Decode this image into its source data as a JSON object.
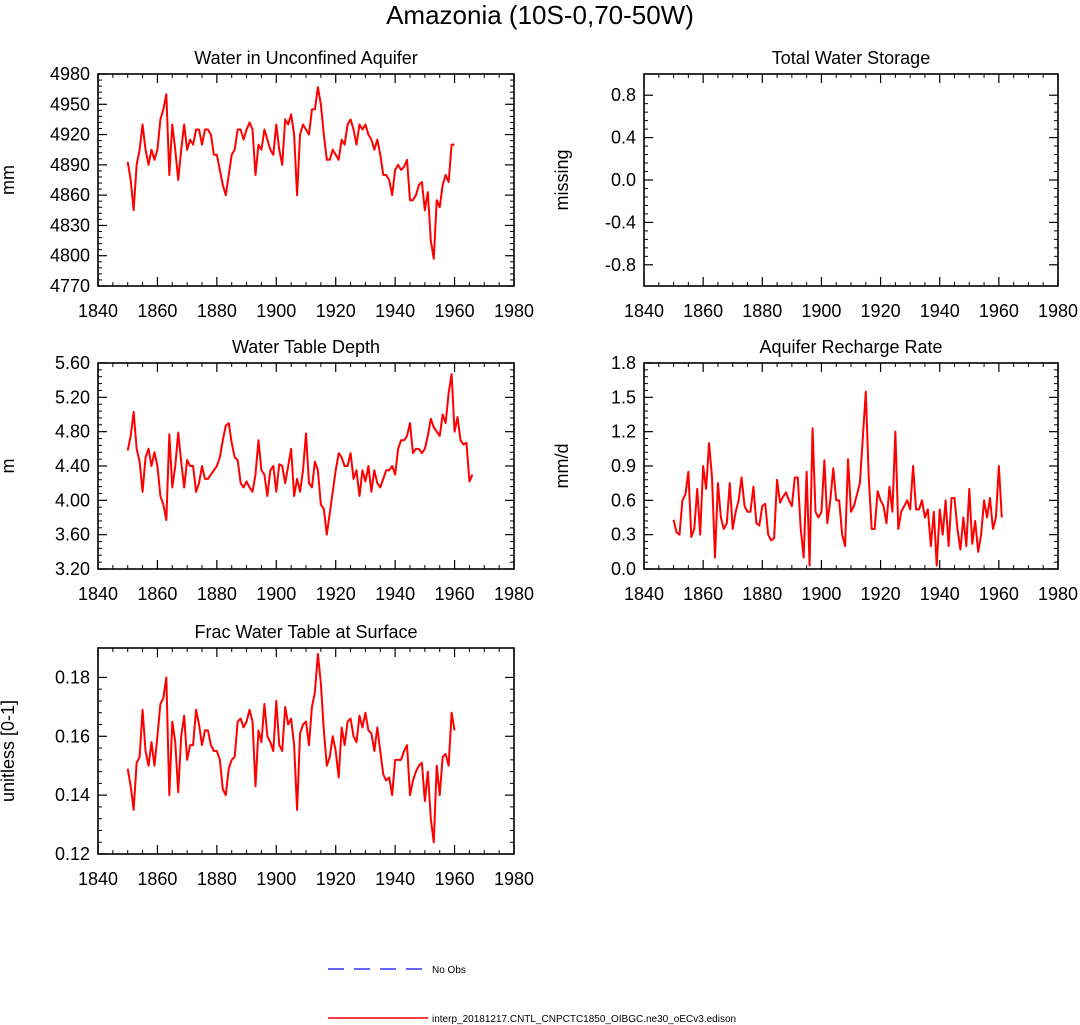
{
  "figure_title": "Amazonia (10S-0,70-50W)",
  "legend": {
    "obs_label": "No Obs",
    "obs_color": "#3333ff",
    "model_label": "interp_20181217.CNTL_CNPCTC1850_OIBGC.ne30_oECv3.edison",
    "model_color": "#ff0000"
  },
  "chart_data": [
    {
      "type": "line",
      "title": "Water in Unconfined Aquifer",
      "ylabel": "mm",
      "xlim": [
        1840,
        1980
      ],
      "ylim": [
        4770,
        4980
      ],
      "xticks": [
        1840,
        1860,
        1880,
        1900,
        1920,
        1940,
        1960,
        1980
      ],
      "yticks": [
        4770,
        4800,
        4830,
        4860,
        4890,
        4920,
        4950,
        4980
      ],
      "ytick_labels": [
        "4770",
        "4800",
        "4830",
        "4860",
        "4890",
        "4920",
        "4950",
        "4980"
      ],
      "x_start": 1850,
      "values": [
        4893,
        4875,
        4845,
        4890,
        4905,
        4930,
        4905,
        4890,
        4905,
        4895,
        4905,
        4935,
        4945,
        4960,
        4880,
        4930,
        4905,
        4875,
        4905,
        4930,
        4905,
        4915,
        4910,
        4925,
        4925,
        4910,
        4925,
        4925,
        4920,
        4900,
        4900,
        4885,
        4870,
        4860,
        4880,
        4900,
        4905,
        4925,
        4925,
        4915,
        4925,
        4932,
        4925,
        4880,
        4910,
        4905,
        4925,
        4915,
        4905,
        4900,
        4930,
        4905,
        4890,
        4935,
        4930,
        4940,
        4920,
        4860,
        4920,
        4930,
        4925,
        4920,
        4945,
        4945,
        4967,
        4950,
        4920,
        4895,
        4895,
        4905,
        4900,
        4895,
        4915,
        4910,
        4930,
        4935,
        4925,
        4910,
        4930,
        4925,
        4930,
        4920,
        4915,
        4905,
        4915,
        4900,
        4880,
        4880,
        4875,
        4860,
        4885,
        4890,
        4885,
        4888,
        4895,
        4855,
        4855,
        4860,
        4870,
        4873,
        4845,
        4863,
        4815,
        4797,
        4855,
        4848,
        4870,
        4880,
        4873,
        4910,
        4910
      ]
    },
    {
      "type": "line",
      "title": "Total Water Storage",
      "ylabel": "missing",
      "xlim": [
        1840,
        1980
      ],
      "ylim": [
        -1,
        1
      ],
      "xticks": [
        1840,
        1860,
        1880,
        1900,
        1920,
        1940,
        1960,
        1980
      ],
      "yticks": [
        -0.8,
        -0.4,
        0,
        0.4,
        0.8
      ],
      "ytick_labels": [
        "-0.8",
        "-0.4",
        "0.0",
        "0.4",
        "0.8"
      ],
      "x_start": 1850,
      "values": []
    },
    {
      "type": "line",
      "title": "Water Table Depth",
      "ylabel": "m",
      "xlim": [
        1840,
        1980
      ],
      "ylim": [
        3.2,
        5.6
      ],
      "xticks": [
        1840,
        1860,
        1880,
        1900,
        1920,
        1940,
        1960,
        1980
      ],
      "yticks": [
        3.2,
        3.6,
        4.0,
        4.4,
        4.8,
        5.2,
        5.6
      ],
      "ytick_labels": [
        "3.20",
        "3.60",
        "4.00",
        "4.40",
        "4.80",
        "5.20",
        "5.60"
      ],
      "x_start": 1850,
      "values": [
        4.58,
        4.75,
        5.03,
        4.6,
        4.45,
        4.1,
        4.5,
        4.6,
        4.4,
        4.56,
        4.4,
        4.05,
        3.95,
        3.77,
        4.77,
        4.15,
        4.4,
        4.79,
        4.45,
        4.15,
        4.47,
        4.4,
        4.4,
        4.1,
        4.2,
        4.4,
        4.25,
        4.25,
        4.3,
        4.35,
        4.4,
        4.5,
        4.7,
        4.87,
        4.9,
        4.67,
        4.5,
        4.47,
        4.2,
        4.15,
        4.22,
        4.15,
        4.1,
        4.3,
        4.7,
        4.35,
        4.3,
        4.05,
        4.35,
        4.4,
        4.1,
        4.42,
        4.4,
        4.2,
        4.4,
        4.6,
        4.05,
        4.25,
        4.1,
        4.35,
        4.78,
        4.2,
        4.15,
        4.45,
        4.35,
        3.95,
        3.9,
        3.6,
        3.85,
        4.1,
        4.35,
        4.55,
        4.5,
        4.4,
        4.4,
        4.55,
        4.25,
        4.35,
        4.05,
        4.35,
        4.22,
        4.4,
        4.1,
        4.35,
        4.2,
        4.15,
        4.25,
        4.35,
        4.35,
        4.4,
        4.3,
        4.6,
        4.7,
        4.7,
        4.75,
        4.9,
        4.55,
        4.6,
        4.6,
        4.55,
        4.6,
        4.75,
        4.95,
        4.85,
        4.8,
        4.75,
        5.0,
        4.9,
        5.25,
        5.47,
        4.8,
        4.97,
        4.7,
        4.65,
        4.67,
        4.22,
        4.3
      ]
    },
    {
      "type": "line",
      "title": "Aquifer Recharge Rate",
      "ylabel": "mm/d",
      "xlim": [
        1840,
        1980
      ],
      "ylim": [
        0,
        1.8
      ],
      "xticks": [
        1840,
        1860,
        1880,
        1900,
        1920,
        1940,
        1960,
        1980
      ],
      "yticks": [
        0,
        0.3,
        0.6,
        0.9,
        1.2,
        1.5,
        1.8
      ],
      "ytick_labels": [
        "0.0",
        "0.3",
        "0.6",
        "0.9",
        "1.2",
        "1.5",
        "1.8"
      ],
      "x_start": 1850,
      "values": [
        0.43,
        0.32,
        0.3,
        0.6,
        0.65,
        0.85,
        0.28,
        0.35,
        0.7,
        0.3,
        0.9,
        0.7,
        1.1,
        0.8,
        0.1,
        0.75,
        0.45,
        0.35,
        0.4,
        0.75,
        0.35,
        0.5,
        0.6,
        0.8,
        0.55,
        0.5,
        0.5,
        0.72,
        0.4,
        0.38,
        0.55,
        0.57,
        0.3,
        0.25,
        0.27,
        0.78,
        0.58,
        0.63,
        0.67,
        0.6,
        0.55,
        0.8,
        0.8,
        0.35,
        0.1,
        0.85,
        0.03,
        1.23,
        0.5,
        0.45,
        0.5,
        0.95,
        0.4,
        0.6,
        0.88,
        0.6,
        0.6,
        0.3,
        0.2,
        0.96,
        0.5,
        0.55,
        0.65,
        0.75,
        1.15,
        1.55,
        0.8,
        0.35,
        0.35,
        0.68,
        0.6,
        0.55,
        0.4,
        0.72,
        0.5,
        1.2,
        0.35,
        0.5,
        0.55,
        0.6,
        0.52,
        0.9,
        0.52,
        0.52,
        0.6,
        0.45,
        0.52,
        0.2,
        0.5,
        0.03,
        0.52,
        0.3,
        0.6,
        0.2,
        0.62,
        0.62,
        0.35,
        0.17,
        0.45,
        0.2,
        0.7,
        0.22,
        0.42,
        0.15,
        0.3,
        0.6,
        0.45,
        0.62,
        0.35,
        0.45,
        0.9,
        0.45
      ]
    },
    {
      "type": "line",
      "title": "Frac Water Table at Surface",
      "ylabel": "unitless [0-1]",
      "xlim": [
        1840,
        1980
      ],
      "ylim": [
        0.12,
        0.19
      ],
      "xticks": [
        1840,
        1860,
        1880,
        1900,
        1920,
        1940,
        1960,
        1980
      ],
      "yticks": [
        0.12,
        0.14,
        0.16,
        0.18
      ],
      "ytick_labels": [
        "0.12",
        "0.14",
        "0.16",
        "0.18"
      ],
      "x_start": 1850,
      "values": [
        0.149,
        0.143,
        0.135,
        0.151,
        0.153,
        0.169,
        0.155,
        0.15,
        0.158,
        0.15,
        0.16,
        0.171,
        0.173,
        0.18,
        0.14,
        0.165,
        0.158,
        0.141,
        0.16,
        0.167,
        0.152,
        0.157,
        0.157,
        0.169,
        0.164,
        0.157,
        0.162,
        0.162,
        0.157,
        0.155,
        0.155,
        0.152,
        0.142,
        0.14,
        0.149,
        0.152,
        0.153,
        0.165,
        0.166,
        0.163,
        0.165,
        0.169,
        0.165,
        0.143,
        0.162,
        0.158,
        0.171,
        0.16,
        0.158,
        0.155,
        0.172,
        0.157,
        0.155,
        0.17,
        0.164,
        0.166,
        0.157,
        0.135,
        0.161,
        0.164,
        0.165,
        0.157,
        0.17,
        0.175,
        0.188,
        0.178,
        0.162,
        0.15,
        0.153,
        0.16,
        0.155,
        0.146,
        0.163,
        0.157,
        0.165,
        0.166,
        0.16,
        0.158,
        0.167,
        0.163,
        0.168,
        0.162,
        0.161,
        0.155,
        0.163,
        0.155,
        0.147,
        0.145,
        0.146,
        0.14,
        0.152,
        0.152,
        0.152,
        0.155,
        0.157,
        0.14,
        0.145,
        0.148,
        0.15,
        0.151,
        0.138,
        0.148,
        0.132,
        0.124,
        0.15,
        0.14,
        0.153,
        0.154,
        0.15,
        0.168,
        0.162
      ]
    }
  ]
}
